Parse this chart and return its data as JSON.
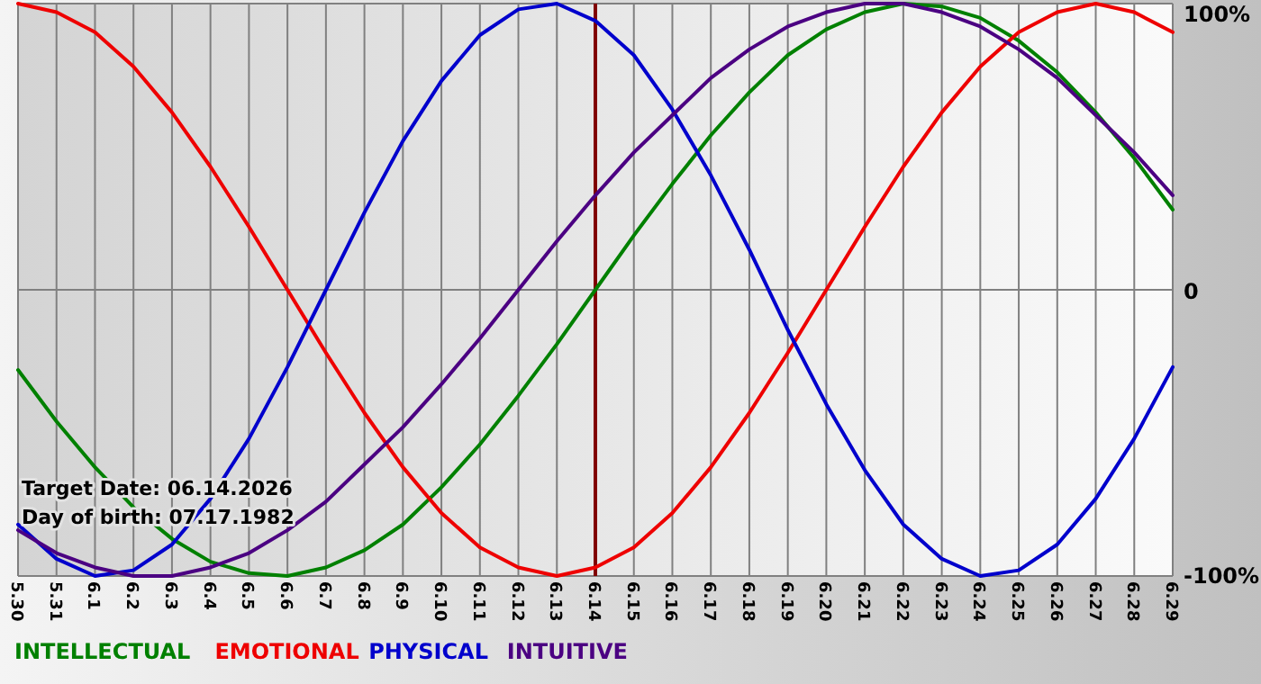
{
  "chart_data": {
    "type": "line",
    "categories": [
      "5.30",
      "5.31",
      "6.1",
      "6.2",
      "6.3",
      "6.4",
      "6.5",
      "6.6",
      "6.7",
      "6.8",
      "6.9",
      "6.10",
      "6.11",
      "6.12",
      "6.13",
      "6.14",
      "6.15",
      "6.16",
      "6.17",
      "6.18",
      "6.19",
      "6.20",
      "6.21",
      "6.22",
      "6.23",
      "6.24",
      "6.25",
      "6.26",
      "6.27",
      "6.28",
      "6.29"
    ],
    "series": [
      {
        "name": "INTELLECTUAL",
        "color": "#008000",
        "values": [
          -28,
          -46,
          -62,
          -76,
          -87,
          -95,
          -99,
          -100,
          -97,
          -91,
          -82,
          -69,
          -54,
          -37,
          -19,
          0,
          19,
          37,
          54,
          69,
          82,
          91,
          97,
          100,
          99,
          95,
          87,
          76,
          62,
          46,
          28
        ]
      },
      {
        "name": "EMOTIONAL",
        "color": "#ee0000",
        "values": [
          100,
          97,
          90,
          78,
          62,
          43,
          22,
          0,
          -22,
          -43,
          -62,
          -78,
          -90,
          -97,
          -100,
          -97,
          -90,
          -78,
          -62,
          -43,
          -22,
          0,
          22,
          43,
          62,
          78,
          90,
          97,
          100,
          97,
          90
        ]
      },
      {
        "name": "PHYSICAL",
        "color": "#0000cc",
        "values": [
          -82,
          -94,
          -100,
          -98,
          -89,
          -73,
          -52,
          -27,
          0,
          27,
          52,
          73,
          89,
          98,
          100,
          94,
          82,
          63,
          40,
          14,
          -14,
          -40,
          -63,
          -82,
          -94,
          -100,
          -98,
          -89,
          -73,
          -52,
          -27
        ]
      },
      {
        "name": "INTUITIVE",
        "color": "#4b0082",
        "values": [
          -84,
          -92,
          -97,
          -100,
          -100,
          -97,
          -92,
          -84,
          -74,
          -61,
          -48,
          -33,
          -17,
          0,
          17,
          33,
          48,
          61,
          74,
          84,
          92,
          97,
          100,
          100,
          97,
          92,
          84,
          74,
          61,
          48,
          33
        ]
      }
    ],
    "ylim": [
      -100,
      100
    ],
    "yticks": [
      {
        "value": 100,
        "label": "100%"
      },
      0,
      {
        "value": -100,
        "label": "-100%"
      }
    ],
    "grid": true,
    "legend": "bottom",
    "ref_lines": [
      {
        "axis": "x",
        "value": "6.14",
        "color": "#800000"
      }
    ],
    "annotations": [
      "Target Date: 06.14.2026",
      "Day of birth: 07.17.1982"
    ]
  }
}
